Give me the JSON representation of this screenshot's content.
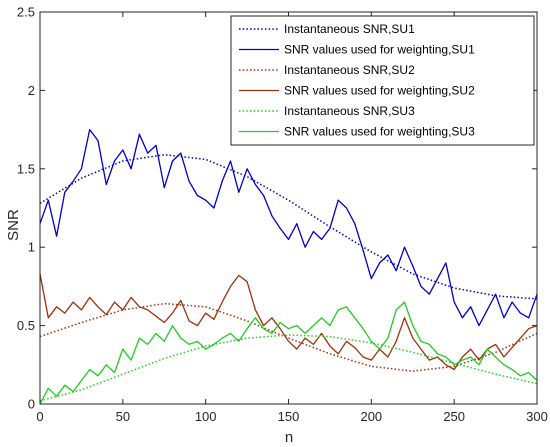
{
  "chart_data": {
    "type": "line",
    "title": "",
    "xlabel": "n",
    "ylabel": "SNR",
    "xlim": [
      0,
      300
    ],
    "ylim": [
      0,
      2.5
    ],
    "xticks": [
      "0",
      "50",
      "100",
      "150",
      "200",
      "250",
      "300"
    ],
    "yticks": [
      "0",
      "0.5",
      "1",
      "1.5",
      "2",
      "2.5"
    ],
    "grid": false,
    "legend_position": "top-right",
    "series": [
      {
        "name": "Instantaneous SNR,SU1",
        "style": "dotted",
        "color": "#0000cc",
        "x": [
          0,
          25,
          50,
          75,
          100,
          125,
          150,
          175,
          200,
          225,
          250,
          275,
          300
        ],
        "values": [
          1.28,
          1.44,
          1.55,
          1.59,
          1.56,
          1.45,
          1.3,
          1.13,
          0.97,
          0.83,
          0.74,
          0.69,
          0.67
        ]
      },
      {
        "name": "SNR values used for weighting,SU1",
        "style": "solid",
        "color": "#0000cc",
        "x": [
          0,
          5,
          10,
          15,
          20,
          25,
          30,
          35,
          40,
          45,
          50,
          55,
          60,
          65,
          70,
          75,
          80,
          85,
          90,
          95,
          100,
          105,
          110,
          115,
          120,
          125,
          130,
          135,
          140,
          145,
          150,
          155,
          160,
          165,
          170,
          175,
          180,
          185,
          190,
          195,
          200,
          205,
          210,
          215,
          220,
          225,
          230,
          235,
          240,
          245,
          250,
          255,
          260,
          265,
          270,
          275,
          280,
          285,
          290,
          295,
          300
        ],
        "values": [
          1.15,
          1.3,
          1.07,
          1.35,
          1.42,
          1.5,
          1.75,
          1.68,
          1.4,
          1.55,
          1.62,
          1.5,
          1.72,
          1.6,
          1.65,
          1.38,
          1.55,
          1.6,
          1.42,
          1.33,
          1.3,
          1.25,
          1.42,
          1.55,
          1.35,
          1.5,
          1.4,
          1.33,
          1.2,
          1.12,
          1.05,
          1.15,
          1.0,
          1.1,
          1.05,
          1.12,
          1.3,
          1.25,
          1.15,
          0.98,
          0.8,
          0.9,
          0.95,
          0.85,
          1.0,
          0.88,
          0.75,
          0.7,
          0.8,
          0.9,
          0.65,
          0.55,
          0.62,
          0.5,
          0.6,
          0.7,
          0.55,
          0.65,
          0.58,
          0.55,
          0.7
        ]
      },
      {
        "name": "Instantaneous SNR,SU2",
        "style": "dotted",
        "color": "#a0300a",
        "x": [
          0,
          25,
          50,
          75,
          100,
          125,
          150,
          175,
          200,
          225,
          250,
          275,
          300
        ],
        "values": [
          0.43,
          0.52,
          0.6,
          0.64,
          0.62,
          0.53,
          0.42,
          0.32,
          0.24,
          0.21,
          0.24,
          0.33,
          0.45
        ]
      },
      {
        "name": "SNR values used for weighting,SU2",
        "style": "solid",
        "color": "#a0300a",
        "x": [
          0,
          5,
          10,
          15,
          20,
          25,
          30,
          35,
          40,
          45,
          50,
          55,
          60,
          65,
          70,
          75,
          80,
          85,
          90,
          95,
          100,
          105,
          110,
          115,
          120,
          125,
          130,
          135,
          140,
          145,
          150,
          155,
          160,
          165,
          170,
          175,
          180,
          185,
          190,
          195,
          200,
          205,
          210,
          215,
          220,
          225,
          230,
          235,
          240,
          245,
          250,
          255,
          260,
          265,
          270,
          275,
          280,
          285,
          290,
          295,
          300
        ],
        "values": [
          0.83,
          0.55,
          0.62,
          0.58,
          0.65,
          0.6,
          0.68,
          0.62,
          0.57,
          0.65,
          0.6,
          0.68,
          0.62,
          0.6,
          0.56,
          0.52,
          0.58,
          0.66,
          0.53,
          0.5,
          0.58,
          0.54,
          0.65,
          0.75,
          0.82,
          0.78,
          0.6,
          0.5,
          0.55,
          0.48,
          0.4,
          0.35,
          0.42,
          0.38,
          0.45,
          0.37,
          0.32,
          0.4,
          0.36,
          0.3,
          0.28,
          0.35,
          0.3,
          0.4,
          0.55,
          0.42,
          0.35,
          0.28,
          0.3,
          0.25,
          0.22,
          0.3,
          0.35,
          0.28,
          0.35,
          0.38,
          0.3,
          0.36,
          0.42,
          0.48,
          0.5
        ]
      },
      {
        "name": "Instantaneous SNR,SU3",
        "style": "dotted",
        "color": "#22cc22",
        "x": [
          0,
          25,
          50,
          75,
          100,
          125,
          150,
          175,
          200,
          225,
          250,
          275,
          300
        ],
        "values": [
          0.02,
          0.09,
          0.19,
          0.29,
          0.37,
          0.42,
          0.44,
          0.43,
          0.39,
          0.33,
          0.26,
          0.19,
          0.13
        ]
      },
      {
        "name": "SNR values used for weighting,SU3",
        "style": "solid",
        "color": "#22cc22",
        "x": [
          0,
          5,
          10,
          15,
          20,
          25,
          30,
          35,
          40,
          45,
          50,
          55,
          60,
          65,
          70,
          75,
          80,
          85,
          90,
          95,
          100,
          105,
          110,
          115,
          120,
          125,
          130,
          135,
          140,
          145,
          150,
          155,
          160,
          165,
          170,
          175,
          180,
          185,
          190,
          195,
          200,
          205,
          210,
          215,
          220,
          225,
          230,
          235,
          240,
          245,
          250,
          255,
          260,
          265,
          270,
          275,
          280,
          285,
          290,
          295,
          300
        ],
        "values": [
          0.0,
          0.1,
          0.05,
          0.12,
          0.08,
          0.15,
          0.22,
          0.18,
          0.25,
          0.2,
          0.35,
          0.28,
          0.42,
          0.38,
          0.45,
          0.4,
          0.5,
          0.42,
          0.38,
          0.4,
          0.35,
          0.38,
          0.42,
          0.45,
          0.4,
          0.48,
          0.55,
          0.48,
          0.45,
          0.52,
          0.48,
          0.5,
          0.45,
          0.5,
          0.55,
          0.5,
          0.6,
          0.62,
          0.55,
          0.48,
          0.4,
          0.35,
          0.42,
          0.6,
          0.65,
          0.5,
          0.4,
          0.38,
          0.32,
          0.3,
          0.25,
          0.28,
          0.3,
          0.25,
          0.35,
          0.3,
          0.25,
          0.22,
          0.18,
          0.2,
          0.15
        ]
      }
    ]
  }
}
